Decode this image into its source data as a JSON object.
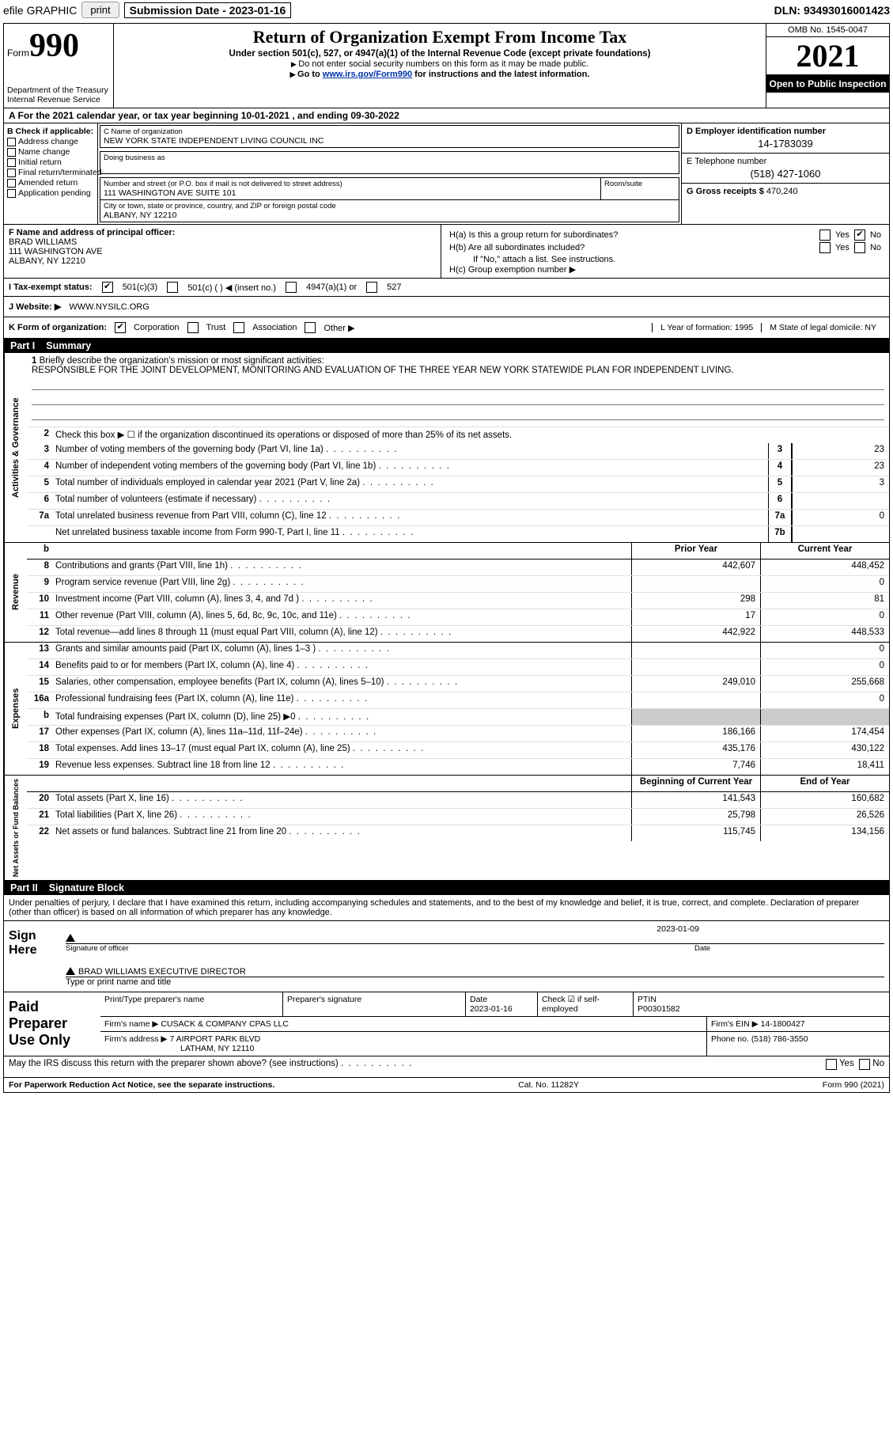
{
  "topbar": {
    "efile_label": "efile GRAPHIC",
    "print_btn": "print",
    "sub_date_label": "Submission Date - 2023-01-16",
    "dln_label": "DLN: 93493016001423"
  },
  "header": {
    "form_word": "Form",
    "form_number": "990",
    "dept": "Department of the Treasury",
    "irs": "Internal Revenue Service",
    "title": "Return of Organization Exempt From Income Tax",
    "sub": "Under section 501(c), 527, or 4947(a)(1) of the Internal Revenue Code (except private foundations)",
    "note1": "Do not enter social security numbers on this form as it may be made public.",
    "note2_pre": "Go to ",
    "note2_link": "www.irs.gov/Form990",
    "note2_post": " for instructions and the latest information.",
    "omb": "OMB No. 1545-0047",
    "year": "2021",
    "inspection": "Open to Public Inspection"
  },
  "rowA": "A For the 2021 calendar year, or tax year beginning 10-01-2021    , and ending 09-30-2022",
  "B": {
    "label": "B Check if applicable:",
    "opts": [
      "Address change",
      "Name change",
      "Initial return",
      "Final return/terminated",
      "Amended return",
      "Application pending"
    ]
  },
  "C": {
    "name_label": "C Name of organization",
    "name": "NEW YORK STATE INDEPENDENT LIVING COUNCIL INC",
    "dba_label": "Doing business as",
    "street_label": "Number and street (or P.O. box if mail is not delivered to street address)",
    "street": "111 WASHINGTON AVE SUITE 101",
    "room_label": "Room/suite",
    "city_label": "City or town, state or province, country, and ZIP or foreign postal code",
    "city": "ALBANY, NY  12210"
  },
  "D": {
    "label": "D Employer identification number",
    "value": "14-1783039"
  },
  "E": {
    "label": "E Telephone number",
    "value": "(518) 427-1060"
  },
  "G": {
    "label": "G Gross receipts $",
    "value": "470,240"
  },
  "F": {
    "label": "F  Name and address of principal officer:",
    "name": "BRAD WILLIAMS",
    "addr1": "111 WASHINGTON AVE",
    "addr2": "ALBANY, NY  12210"
  },
  "H": {
    "ha": "H(a)  Is this a group return for subordinates?",
    "hb": "H(b)  Are all subordinates included?",
    "hb_note": "If \"No,\" attach a list. See instructions.",
    "hc": "H(c)  Group exemption number ▶",
    "yes": "Yes",
    "no": "No"
  },
  "I": {
    "label": "I  Tax-exempt status:",
    "o1": "501(c)(3)",
    "o2": "501(c) (   ) ◀ (insert no.)",
    "o3": "4947(a)(1) or",
    "o4": "527"
  },
  "J": {
    "label": "J  Website: ▶",
    "value": "WWW.NYSILC.ORG"
  },
  "K": {
    "label": "K Form of organization:",
    "o1": "Corporation",
    "o2": "Trust",
    "o3": "Association",
    "o4": "Other ▶",
    "L": "L Year of formation: 1995",
    "M": "M State of legal domicile: NY"
  },
  "part1": {
    "label": "Part I",
    "title": "Summary"
  },
  "mission": {
    "l1_label": "1",
    "l1_text": "Briefly describe the organization's mission or most significant activities:",
    "l1_val": "RESPONSIBLE FOR THE JOINT DEVELOPMENT, MONITORING AND EVALUATION OF THE THREE YEAR NEW YORK STATEWIDE PLAN FOR INDEPENDENT LIVING.",
    "l2": "Check this box ▶ ☐  if the organization discontinued its operations or disposed of more than 25% of its net assets."
  },
  "lines_ag": [
    {
      "num": "3",
      "desc": "Number of voting members of the governing body (Part VI, line 1a)",
      "box": "3",
      "val": "23"
    },
    {
      "num": "4",
      "desc": "Number of independent voting members of the governing body (Part VI, line 1b)",
      "box": "4",
      "val": "23"
    },
    {
      "num": "5",
      "desc": "Total number of individuals employed in calendar year 2021 (Part V, line 2a)",
      "box": "5",
      "val": "3"
    },
    {
      "num": "6",
      "desc": "Total number of volunteers (estimate if necessary)",
      "box": "6",
      "val": ""
    },
    {
      "num": "7a",
      "desc": "Total unrelated business revenue from Part VIII, column (C), line 12",
      "box": "7a",
      "val": "0"
    },
    {
      "num": "",
      "desc": "Net unrelated business taxable income from Form 990-T, Part I, line 11",
      "box": "7b",
      "val": ""
    }
  ],
  "rev_hdr": {
    "left": "b",
    "prior": "Prior Year",
    "curr": "Current Year"
  },
  "revenue": [
    {
      "num": "8",
      "desc": "Contributions and grants (Part VIII, line 1h)",
      "prior": "442,607",
      "curr": "448,452"
    },
    {
      "num": "9",
      "desc": "Program service revenue (Part VIII, line 2g)",
      "prior": "",
      "curr": "0"
    },
    {
      "num": "10",
      "desc": "Investment income (Part VIII, column (A), lines 3, 4, and 7d )",
      "prior": "298",
      "curr": "81"
    },
    {
      "num": "11",
      "desc": "Other revenue (Part VIII, column (A), lines 5, 6d, 8c, 9c, 10c, and 11e)",
      "prior": "17",
      "curr": "0"
    },
    {
      "num": "12",
      "desc": "Total revenue—add lines 8 through 11 (must equal Part VIII, column (A), line 12)",
      "prior": "442,922",
      "curr": "448,533"
    }
  ],
  "expenses": [
    {
      "num": "13",
      "desc": "Grants and similar amounts paid (Part IX, column (A), lines 1–3 )",
      "prior": "",
      "curr": "0"
    },
    {
      "num": "14",
      "desc": "Benefits paid to or for members (Part IX, column (A), line 4)",
      "prior": "",
      "curr": "0"
    },
    {
      "num": "15",
      "desc": "Salaries, other compensation, employee benefits (Part IX, column (A), lines 5–10)",
      "prior": "249,010",
      "curr": "255,668"
    },
    {
      "num": "16a",
      "desc": "Professional fundraising fees (Part IX, column (A), line 11e)",
      "prior": "",
      "curr": "0"
    },
    {
      "num": "b",
      "desc": "Total fundraising expenses (Part IX, column (D), line 25) ▶0",
      "prior": "SHADE",
      "curr": "SHADE"
    },
    {
      "num": "17",
      "desc": "Other expenses (Part IX, column (A), lines 11a–11d, 11f–24e)",
      "prior": "186,166",
      "curr": "174,454"
    },
    {
      "num": "18",
      "desc": "Total expenses. Add lines 13–17 (must equal Part IX, column (A), line 25)",
      "prior": "435,176",
      "curr": "430,122"
    },
    {
      "num": "19",
      "desc": "Revenue less expenses. Subtract line 18 from line 12",
      "prior": "7,746",
      "curr": "18,411"
    }
  ],
  "net_hdr": {
    "prior": "Beginning of Current Year",
    "curr": "End of Year"
  },
  "netassets": [
    {
      "num": "20",
      "desc": "Total assets (Part X, line 16)",
      "prior": "141,543",
      "curr": "160,682"
    },
    {
      "num": "21",
      "desc": "Total liabilities (Part X, line 26)",
      "prior": "25,798",
      "curr": "26,526"
    },
    {
      "num": "22",
      "desc": "Net assets or fund balances. Subtract line 21 from line 20",
      "prior": "115,745",
      "curr": "134,156"
    }
  ],
  "part2": {
    "label": "Part II",
    "title": "Signature Block"
  },
  "declare": "Under penalties of perjury, I declare that I have examined this return, including accompanying schedules and statements, and to the best of my knowledge and belief, it is true, correct, and complete. Declaration of preparer (other than officer) is based on all information of which preparer has any knowledge.",
  "sign": {
    "label": "Sign Here",
    "sig_of_officer_cap": "Signature of officer",
    "date": "2023-01-09",
    "date_cap": "Date",
    "name": "BRAD WILLIAMS  EXECUTIVE DIRECTOR",
    "name_cap": "Type or print name and title"
  },
  "prep": {
    "label": "Paid Preparer Use Only",
    "r1": {
      "c1_label": "Print/Type preparer's name",
      "c1": "",
      "c2_label": "Preparer's signature",
      "c2": "",
      "c3_label": "Date",
      "c3": "2023-01-16",
      "c4_label": "Check ☑ if self-employed",
      "c5_label": "PTIN",
      "c5": "P00301582"
    },
    "r2": {
      "c1_label": "Firm's name    ▶",
      "c1": "CUSACK & COMPANY CPAS LLC",
      "c2_label": "Firm's EIN ▶",
      "c2": "14-1800427"
    },
    "r3": {
      "c1_label": "Firm's address ▶",
      "c1": "7 AIRPORT PARK BLVD",
      "c1b": "LATHAM, NY  12110",
      "c2_label": "Phone no.",
      "c2": "(518) 786-3550"
    }
  },
  "discuss": {
    "text": "May the IRS discuss this return with the preparer shown above? (see instructions)",
    "yes": "Yes",
    "no": "No"
  },
  "footer": {
    "left": "For Paperwork Reduction Act Notice, see the separate instructions.",
    "mid": "Cat. No. 11282Y",
    "right": "Form 990 (2021)"
  },
  "side": {
    "ag": "Activities & Governance",
    "rev": "Revenue",
    "exp": "Expenses",
    "net": "Net Assets or Fund Balances"
  }
}
